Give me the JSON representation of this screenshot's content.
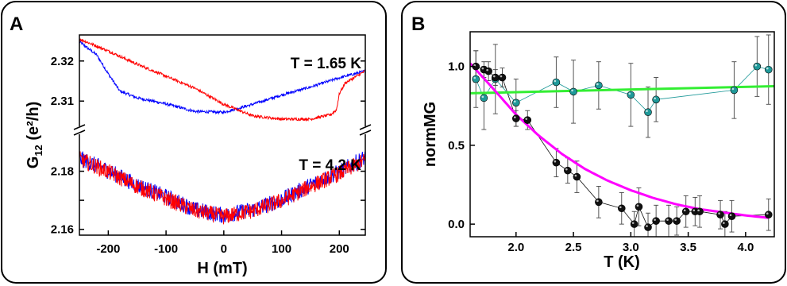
{
  "panels": [
    {
      "letter": "A"
    },
    {
      "letter": "B"
    }
  ],
  "chart_data": [
    {
      "type": "line",
      "panel": "A",
      "xlabel": "H (mT)",
      "ylabel_main": "G",
      "ylabel_sub": "12",
      "ylabel_tail": " (e²/h)",
      "xlim": [
        -250,
        245
      ],
      "xticks": [
        -200,
        -100,
        0,
        100,
        200
      ],
      "upper": {
        "ylim": [
          2.3035,
          2.3265
        ],
        "yticks": [
          2.31,
          2.32
        ],
        "ytick_labels": [
          "2.31",
          "2.32"
        ],
        "annotation": "T = 1.65 K",
        "series": [
          {
            "color": "#0000ff",
            "x": [
              -250,
              -220,
              -200,
              -180,
              -150,
              -100,
              -50,
              0,
              50,
              100,
              150,
              200,
              245
            ],
            "y": [
              2.3248,
              2.3215,
              2.3168,
              2.3125,
              2.3108,
              2.3093,
              2.3074,
              2.3072,
              2.3092,
              2.3115,
              2.3135,
              2.3158,
              2.3175
            ]
          },
          {
            "color": "#ff0000",
            "x": [
              -250,
              -200,
              -150,
              -100,
              -50,
              0,
              50,
              100,
              150,
              185,
              195,
              200,
              210,
              245
            ],
            "y": [
              2.3255,
              2.3225,
              2.3192,
              2.3162,
              2.3132,
              2.3092,
              2.3063,
              2.3055,
              2.3055,
              2.3066,
              2.3078,
              2.3118,
              2.3145,
              2.3175
            ]
          }
        ]
      },
      "lower": {
        "ylim": [
          2.158,
          2.193
        ],
        "yticks": [
          2.16,
          2.17,
          2.18
        ],
        "ytick_labels": [
          "2.16",
          "",
          "2.18"
        ],
        "annotation": "T = 4.2 K",
        "series": [
          {
            "color": "#0000ff",
            "x": [
              -250,
              -200,
              -150,
              -100,
              -50,
              0,
              50,
              100,
              150,
              200,
              245
            ],
            "y": [
              2.1845,
              2.1802,
              2.1752,
              2.1712,
              2.1668,
              2.1648,
              2.1668,
              2.1702,
              2.1752,
              2.1798,
              2.1848
            ]
          },
          {
            "color": "#ff0000",
            "x": [
              -250,
              -200,
              -150,
              -100,
              -50,
              0,
              50,
              100,
              150,
              200,
              245
            ],
            "y": [
              2.1842,
              2.1798,
              2.1748,
              2.1706,
              2.1664,
              2.1644,
              2.1664,
              2.1698,
              2.1748,
              2.1792,
              2.1838
            ]
          }
        ]
      }
    },
    {
      "type": "scatter",
      "panel": "B",
      "xlabel": "T (K)",
      "ylabel": "normMG",
      "xlim": [
        1.6,
        4.25
      ],
      "ylim": [
        -0.08,
        1.22
      ],
      "xticks": [
        2.0,
        2.5,
        3.0,
        3.5,
        4.0
      ],
      "xtick_labels": [
        "2.0",
        "2.5",
        "3.0",
        "3.5",
        "4.0"
      ],
      "yticks": [
        0.0,
        0.5,
        1.0
      ],
      "ytick_labels": [
        "0.0",
        "0.5",
        "1.0"
      ],
      "series": [
        {
          "color": "#1f9999",
          "x": [
            1.65,
            1.72,
            1.82,
            2.0,
            2.35,
            2.5,
            2.72,
            3.0,
            3.15,
            3.22,
            3.9,
            4.1,
            4.2
          ],
          "y": [
            0.92,
            0.8,
            0.92,
            0.77,
            0.9,
            0.84,
            0.88,
            0.82,
            0.71,
            0.79,
            0.85,
            1.0,
            0.98
          ],
          "err": [
            0.18,
            0.2,
            0.22,
            0.15,
            0.16,
            0.2,
            0.15,
            0.2,
            0.16,
            0.14,
            0.18,
            0.19,
            0.22
          ]
        },
        {
          "color": "#111111",
          "x": [
            1.65,
            1.72,
            1.76,
            1.82,
            1.88,
            2.0,
            2.1,
            2.35,
            2.45,
            2.53,
            2.72,
            2.92,
            3.03,
            3.07,
            3.15,
            3.22,
            3.33,
            3.4,
            3.48,
            3.56,
            3.6,
            3.78,
            3.82,
            3.88,
            4.2
          ],
          "y": [
            1.0,
            0.98,
            0.97,
            0.93,
            0.93,
            0.67,
            0.66,
            0.39,
            0.34,
            0.3,
            0.14,
            0.1,
            0.0,
            0.11,
            -0.02,
            0.02,
            0.02,
            0.02,
            0.08,
            0.08,
            0.08,
            0.06,
            0.0,
            0.05,
            0.06
          ],
          "err": [
            0.1,
            0.05,
            0.06,
            0.05,
            0.06,
            0.05,
            0.06,
            0.09,
            0.08,
            0.1,
            0.1,
            0.1,
            0.08,
            0.12,
            0.09,
            0.1,
            0.1,
            0.09,
            0.1,
            0.09,
            0.1,
            0.09,
            0.08,
            0.1,
            0.1
          ]
        }
      ],
      "fits": [
        {
          "color": "#33ee33",
          "x": [
            1.6,
            4.25
          ],
          "y": [
            0.83,
            0.875
          ]
        },
        {
          "color": "#ff00ff",
          "x": [
            1.6,
            1.8,
            2.0,
            2.2,
            2.4,
            2.6,
            2.8,
            3.0,
            3.2,
            3.4,
            3.6,
            3.8,
            4.0,
            4.2
          ],
          "y": [
            1.02,
            0.86,
            0.695,
            0.56,
            0.445,
            0.35,
            0.275,
            0.215,
            0.165,
            0.125,
            0.095,
            0.075,
            0.055,
            0.04
          ]
        }
      ]
    }
  ]
}
